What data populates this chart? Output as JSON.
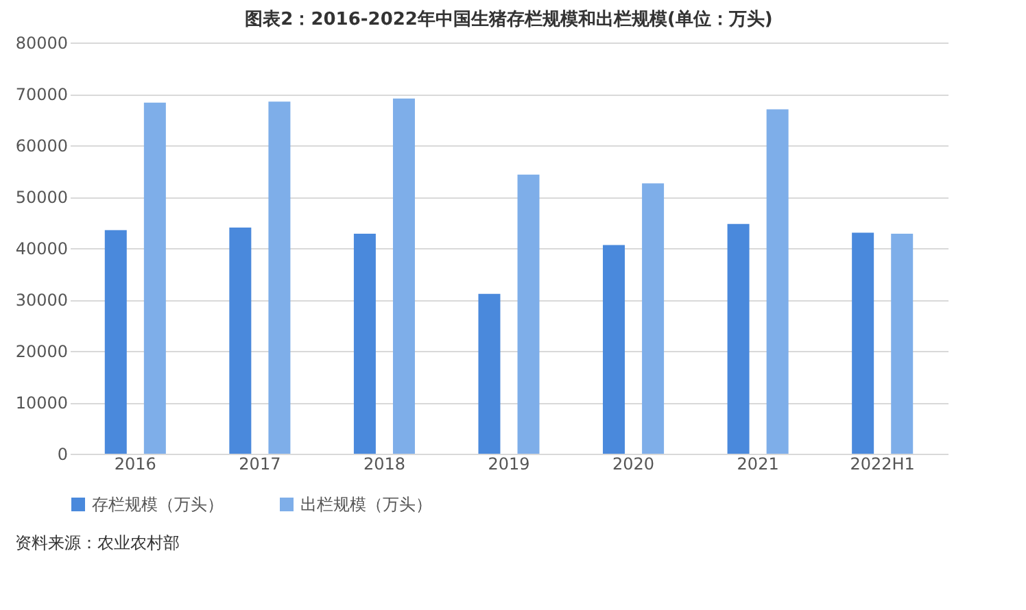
{
  "chart_data": {
    "type": "bar",
    "title": "图表2：2016-2022年中国生猪存栏规模和出栏规模(单位：万头)",
    "categories": [
      "2016",
      "2017",
      "2018",
      "2019",
      "2020",
      "2021",
      "2022H1"
    ],
    "series": [
      {
        "name": "存栏规模（万头）",
        "color": "#4a89dc",
        "values": [
          43500,
          44000,
          42800,
          31100,
          40600,
          44700,
          43000
        ]
      },
      {
        "name": "出栏规模（万头）",
        "color": "#7eaee9",
        "values": [
          68300,
          68500,
          69100,
          54300,
          52600,
          67000,
          42800
        ]
      }
    ],
    "ylim": [
      0,
      80000
    ],
    "yticks": [
      0,
      10000,
      20000,
      30000,
      40000,
      50000,
      60000,
      70000,
      80000
    ],
    "grid": "y",
    "legend": "bottom",
    "annotations": [
      "资料来源：农业农村部"
    ]
  }
}
